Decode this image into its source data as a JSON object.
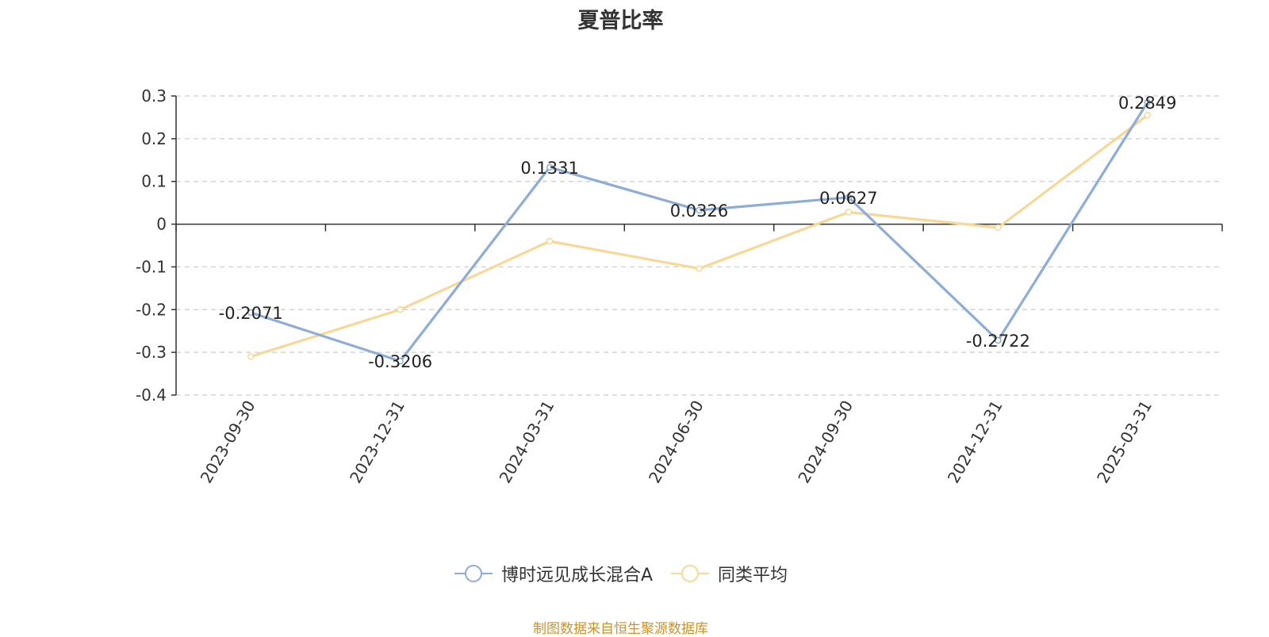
{
  "chart_data": {
    "type": "line",
    "title": "夏普比率",
    "categories": [
      "2023-09-30",
      "2023-12-31",
      "2024-03-31",
      "2024-06-30",
      "2024-09-30",
      "2024-12-31",
      "2025-03-31"
    ],
    "series": [
      {
        "name": "博时远见成长混合A",
        "color": "#8eadd6",
        "values": [
          -0.2071,
          -0.3206,
          0.1331,
          0.0326,
          0.0627,
          -0.2722,
          0.2849
        ],
        "data_labels": [
          "-0.2071",
          "-0.3206",
          "0.1331",
          "0.0326",
          "0.0627",
          "-0.2722",
          "0.2849"
        ]
      },
      {
        "name": "同类平均",
        "color": "#f7d899",
        "values": [
          -0.31,
          -0.2,
          -0.04,
          -0.104,
          0.028,
          -0.008,
          0.255
        ]
      }
    ],
    "ylim": [
      -0.4,
      0.3
    ],
    "yticks": [
      0.3,
      0.2,
      0.1,
      0,
      -0.1,
      -0.2,
      -0.3,
      -0.4
    ],
    "ytick_labels": [
      "0.3",
      "0.2",
      "0.1",
      "0",
      "-0.1",
      "-0.2",
      "-0.3",
      "-0.4"
    ],
    "grid": true,
    "legend_position": "bottom-center",
    "xlabel": "",
    "ylabel": ""
  },
  "source_note": "制图数据来自恒生聚源数据库"
}
